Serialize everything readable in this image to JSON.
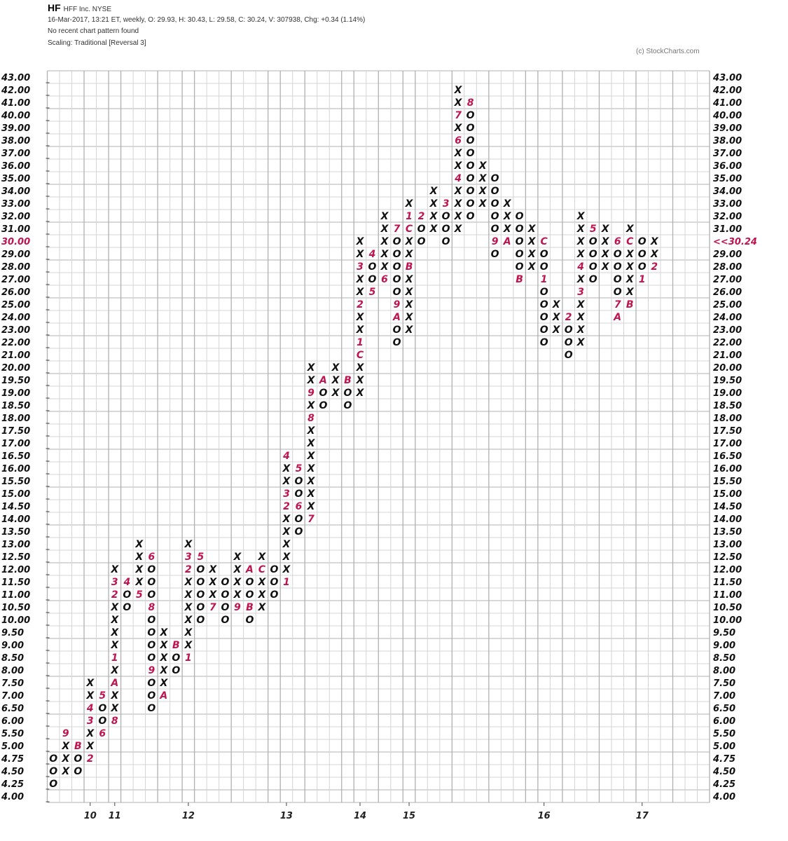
{
  "header": {
    "symbol": "HF",
    "name": "HFF Inc.  NYSE",
    "quote_line": "16-Mar-2017, 13:21 ET, weekly, O: 29.93, H: 30.43, L: 29.58, C: 30.24, V: 307938, Chg: +0.34 (1.14%)",
    "pattern_line": "No recent chart pattern found",
    "scaling_line": "Scaling: Traditional [Reversal  3]",
    "copyright": "(c) StockCharts.com"
  },
  "chart_data": {
    "type": "point-and-figure",
    "box_reversal": 3,
    "price_levels": [
      "43.00",
      "42.00",
      "41.00",
      "40.00",
      "39.00",
      "38.00",
      "37.00",
      "36.00",
      "35.00",
      "34.00",
      "33.00",
      "32.00",
      "31.00",
      "30.00",
      "29.00",
      "28.00",
      "27.00",
      "26.00",
      "25.00",
      "24.00",
      "23.00",
      "22.00",
      "21.00",
      "20.00",
      "19.50",
      "19.00",
      "18.50",
      "18.00",
      "17.50",
      "17.00",
      "16.50",
      "16.00",
      "15.50",
      "15.00",
      "14.50",
      "14.00",
      "13.50",
      "13.00",
      "12.50",
      "12.00",
      "11.50",
      "11.00",
      "10.50",
      "10.00",
      "9.50",
      "9.00",
      "8.50",
      "8.00",
      "7.50",
      "7.00",
      "6.50",
      "6.00",
      "5.50",
      "5.00",
      "4.75",
      "4.50",
      "4.25",
      "4.00"
    ],
    "current_price_label": "<<30.24",
    "current_level": "30.00",
    "x_labels": [
      {
        "label": "10",
        "column": 3
      },
      {
        "label": "11",
        "column": 5
      },
      {
        "label": "12",
        "column": 11
      },
      {
        "label": "13",
        "column": 19
      },
      {
        "label": "14",
        "column": 25
      },
      {
        "label": "15",
        "column": 29
      },
      {
        "label": "16",
        "column": 40
      },
      {
        "label": "17",
        "column": 48
      }
    ],
    "columns_note_cells_low_to_high": true,
    "columns": [
      {
        "type": "O",
        "low": "4.25",
        "cells": "OOO"
      },
      {
        "type": "X",
        "low": "4.50",
        "cells": "XXX9"
      },
      {
        "type": "O",
        "low": "4.50",
        "cells": "OOB"
      },
      {
        "type": "X",
        "low": "4.75",
        "cells": "2XX34XX"
      },
      {
        "type": "O",
        "low": "5.50",
        "cells": "6OO5"
      },
      {
        "type": "X",
        "low": "6.00",
        "cells": "8XXAX1XXXX23X"
      },
      {
        "type": "O",
        "low": "10.50",
        "cells": "OO4"
      },
      {
        "type": "X",
        "low": "11.00",
        "cells": "5XXXX"
      },
      {
        "type": "O",
        "low": "6.50",
        "cells": "OOO9OOOO8OOO6"
      },
      {
        "type": "X",
        "low": "7.00",
        "cells": "AXXXXX"
      },
      {
        "type": "O",
        "low": "8.00",
        "cells": "OOB"
      },
      {
        "type": "X",
        "low": "8.50",
        "cells": "1XXXXXX23X"
      },
      {
        "type": "O",
        "low": "10.00",
        "cells": "OOOOO5"
      },
      {
        "type": "X",
        "low": "10.50",
        "cells": "7XXX"
      },
      {
        "type": "O",
        "low": "10.00",
        "cells": "OOOO"
      },
      {
        "type": "X",
        "low": "10.50",
        "cells": "9XXXX"
      },
      {
        "type": "O",
        "low": "10.00",
        "cells": "OBOOA"
      },
      {
        "type": "X",
        "low": "10.50",
        "cells": "XXXCX"
      },
      {
        "type": "O",
        "low": "11.00",
        "cells": "OOO"
      },
      {
        "type": "X",
        "low": "11.50",
        "cells": "1XXXXX23XX4"
      },
      {
        "type": "O",
        "low": "13.50",
        "cells": "OO6OO5"
      },
      {
        "type": "X",
        "low": "14.00",
        "cells": "7XXXXXXX8X9XX"
      },
      {
        "type": "O",
        "low": "18.50",
        "cells": "OOA"
      },
      {
        "type": "X",
        "low": "19.00",
        "cells": "XXX"
      },
      {
        "type": "O",
        "low": "18.50",
        "cells": "OOB"
      },
      {
        "type": "X",
        "low": "19.00",
        "cells": "XXXC1XX2XX3XX"
      },
      {
        "type": "O",
        "low": "26.00",
        "cells": "5OO4"
      },
      {
        "type": "X",
        "low": "27.00",
        "cells": "6XXXXX"
      },
      {
        "type": "O",
        "low": "22.00",
        "cells": "OOA9OOOOO7"
      },
      {
        "type": "X",
        "low": "23.00",
        "cells": "XXXXXBXXC1X"
      },
      {
        "type": "O",
        "low": "30.00",
        "cells": "OO2"
      },
      {
        "type": "X",
        "low": "31.00",
        "cells": "XXXX"
      },
      {
        "type": "O",
        "low": "30.00",
        "cells": "OOO3"
      },
      {
        "type": "X",
        "low": "31.00",
        "cells": "XXXX4XX6X7XX"
      },
      {
        "type": "O",
        "low": "32.00",
        "cells": "OOOOOOOOO8"
      },
      {
        "type": "X",
        "low": "33.00",
        "cells": "XXXX"
      },
      {
        "type": "O",
        "low": "29.00",
        "cells": "O9OOOOO"
      },
      {
        "type": "X",
        "low": "30.00",
        "cells": "AXXX"
      },
      {
        "type": "O",
        "low": "27.00",
        "cells": "BOOOOO"
      },
      {
        "type": "X",
        "low": "28.00",
        "cells": "XXXX"
      },
      {
        "type": "O",
        "low": "22.00",
        "cells": "OOOOO1OOC"
      },
      {
        "type": "X",
        "low": "23.00",
        "cells": "XXX"
      },
      {
        "type": "O",
        "low": "21.00",
        "cells": "OOO2"
      },
      {
        "type": "X",
        "low": "22.00",
        "cells": "XXXX3X4XXXX"
      },
      {
        "type": "O",
        "low": "27.00",
        "cells": "OOOO5"
      },
      {
        "type": "X",
        "low": "28.00",
        "cells": "XXXX"
      },
      {
        "type": "O",
        "low": "24.00",
        "cells": "A7OOOO6"
      },
      {
        "type": "X",
        "low": "25.00",
        "cells": "BXXXXCX"
      },
      {
        "type": "O",
        "low": "27.00",
        "cells": "1OOO"
      },
      {
        "type": "X",
        "low": "28.00",
        "cells": "2XX"
      }
    ],
    "colors": {
      "box": "#111111",
      "month_marker": "#c0144c",
      "grid": "#d4d4d4",
      "grid_major": "#b0b0b0",
      "current_price": "#c0144c"
    }
  }
}
